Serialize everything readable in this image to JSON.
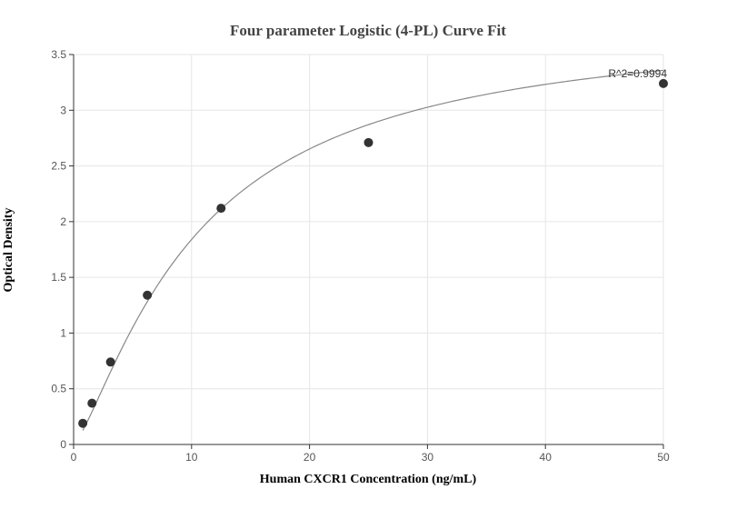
{
  "chart_data": {
    "type": "scatter",
    "title": "Four parameter Logistic (4-PL) Curve Fit",
    "xlabel": "Human CXCR1 Concentration (ng/mL)",
    "ylabel": "Optical Density",
    "xlim": [
      0,
      50
    ],
    "ylim": [
      0,
      3.5
    ],
    "x_ticks": [
      0,
      10,
      20,
      30,
      40,
      50
    ],
    "y_ticks": [
      0,
      0.5,
      1,
      1.5,
      2,
      2.5,
      3,
      3.5
    ],
    "x_tick_labels": [
      "0",
      "10",
      "20",
      "30",
      "40",
      "50"
    ],
    "y_tick_labels": [
      "0",
      "0.5",
      "1",
      "1.5",
      "2",
      "2.5",
      "3",
      "3.5"
    ],
    "grid": true,
    "series": [
      {
        "points": [
          {
            "x": 0.78,
            "y": 0.19
          },
          {
            "x": 1.56,
            "y": 0.37
          },
          {
            "x": 3.13,
            "y": 0.74
          },
          {
            "x": 6.25,
            "y": 1.34
          },
          {
            "x": 12.5,
            "y": 2.12
          },
          {
            "x": 25,
            "y": 2.71
          },
          {
            "x": 50,
            "y": 3.24
          }
        ],
        "color": "#333333"
      }
    ],
    "fit_curve": {
      "model": "4PL",
      "a": 0.0,
      "b": 1.3,
      "c": 10.5,
      "d": 3.8,
      "color": "#888888"
    },
    "annotation": {
      "text": "R^2=0.9994",
      "x": 50,
      "y": 3.24
    }
  }
}
